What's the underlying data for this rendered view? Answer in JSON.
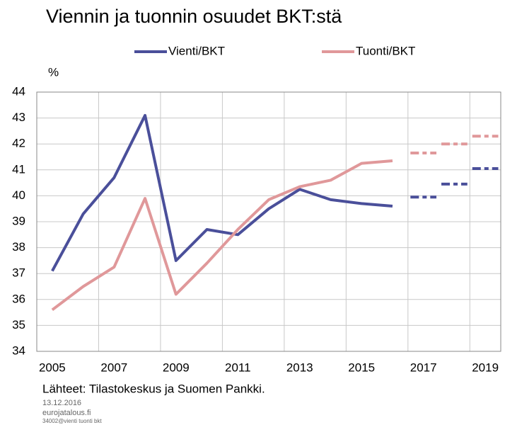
{
  "chart_data": {
    "type": "line",
    "title": "Viennin ja tuonnin osuudet BKT:stä",
    "y_label": "%",
    "categories": [
      "2005",
      null,
      "2007",
      null,
      "2009",
      null,
      "2011",
      null,
      "2013",
      null,
      "2015",
      null,
      "2017",
      null,
      "2019"
    ],
    "series": [
      {
        "name": "Vienti/BKT",
        "color": "#4a4f9a",
        "values": [
          37.1,
          39.3,
          40.7,
          43.1,
          37.5,
          38.7,
          38.5,
          39.5,
          40.25,
          39.85,
          39.7,
          39.6,
          null,
          null,
          null
        ],
        "forecast": [
          null,
          null,
          null,
          null,
          null,
          null,
          null,
          null,
          null,
          null,
          null,
          null,
          39.95,
          40.45,
          41.05
        ]
      },
      {
        "name": "Tuonti/BKT",
        "color": "#e0989a",
        "values": [
          35.6,
          36.5,
          37.25,
          39.9,
          36.2,
          37.4,
          38.7,
          39.85,
          40.35,
          40.6,
          41.25,
          41.35,
          null,
          null,
          null
        ],
        "forecast": [
          null,
          null,
          null,
          null,
          null,
          null,
          null,
          null,
          null,
          null,
          null,
          null,
          41.65,
          42.0,
          42.3
        ]
      }
    ],
    "ylim": [
      34,
      44
    ],
    "yticks": [
      34,
      35,
      36,
      37,
      38,
      39,
      40,
      41,
      42,
      43,
      44
    ],
    "grid": true,
    "source": "Lähteet: Tilastokeskus  ja  Suomen Pankki.",
    "date": "13.12.2016",
    "site": "eurojatalous.fi",
    "code": "34002@vienti  tuonti  bkt"
  }
}
